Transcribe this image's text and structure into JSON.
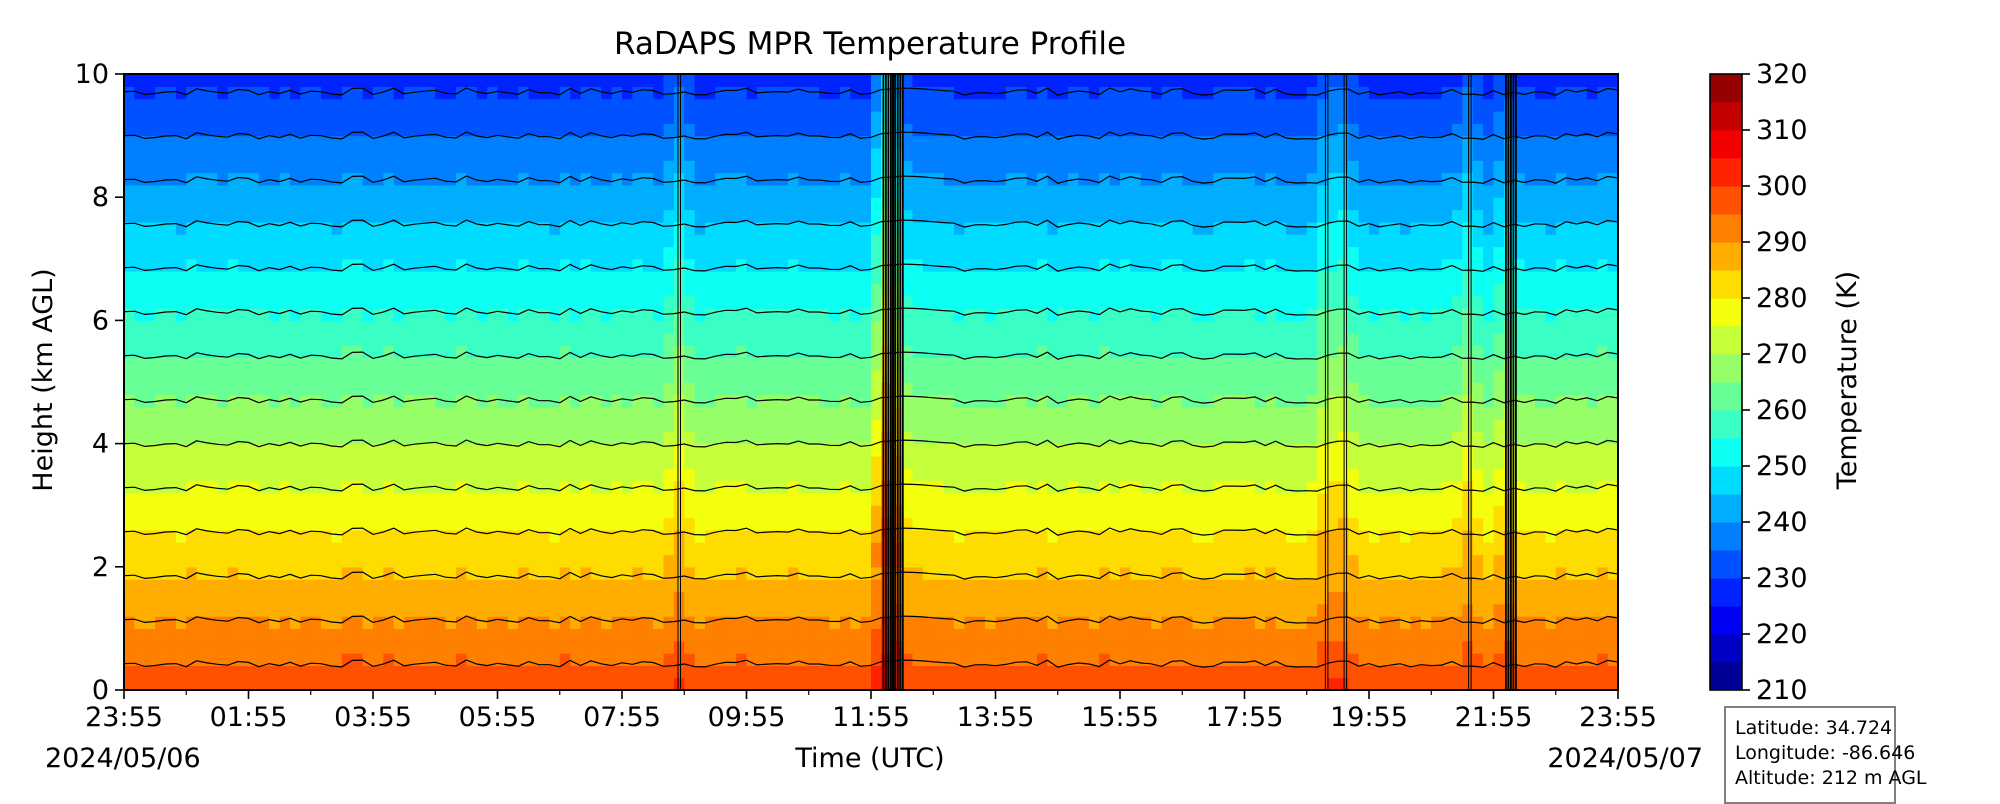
{
  "chart_data": {
    "type": "heatmap",
    "title": "RaDAPS MPR Temperature Profile",
    "xlabel": "Time (UTC)",
    "ylabel": "Height (km AGL)",
    "colorbar_label": "Temperature (K)",
    "x_ticks": [
      "23:55",
      "01:55",
      "03:55",
      "05:55",
      "07:55",
      "09:55",
      "11:55",
      "13:55",
      "15:55",
      "17:55",
      "19:55",
      "21:55",
      "23:55"
    ],
    "x_start_date": "2024/05/06",
    "x_end_date": "2024/05/07",
    "y_ticks": [
      "0",
      "2",
      "4",
      "6",
      "8",
      "10"
    ],
    "ylim": [
      0,
      10
    ],
    "colorbar_ticks": [
      "210",
      "220",
      "230",
      "240",
      "250",
      "260",
      "270",
      "280",
      "290",
      "300",
      "310",
      "320"
    ],
    "clim": [
      210,
      320
    ],
    "contour_interval": 5,
    "contour_levels": [
      215,
      220,
      225,
      230,
      235,
      240,
      245,
      250,
      255,
      260,
      265,
      270,
      275,
      280,
      285,
      290,
      295,
      300
    ],
    "colormap": "jet",
    "colormap_stops": [
      "#00007f",
      "#0000ff",
      "#007fff",
      "#00ffff",
      "#7fff7f",
      "#ffff00",
      "#ff7f00",
      "#ff0000",
      "#7f0000"
    ],
    "surface_temperature_K": 298,
    "temperature_at_10km_K": 228,
    "disturbances_hours_since_start": [
      8.9,
      12.2,
      12.35,
      19.3,
      19.6,
      21.6,
      22.2
    ]
  },
  "station": {
    "latitude": "Latitude: 34.724",
    "longitude": "Longitude: -86.646",
    "altitude": "Altitude: 212 m AGL"
  }
}
